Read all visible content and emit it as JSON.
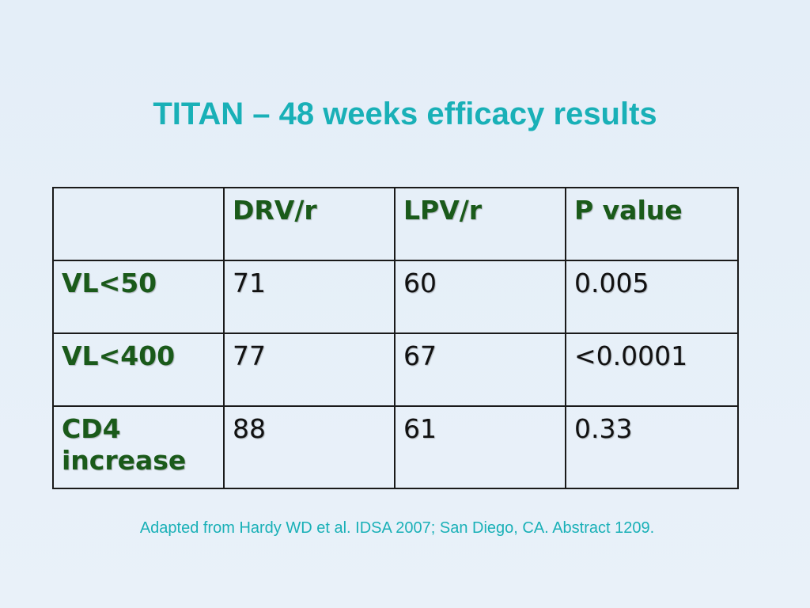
{
  "slide": {
    "title": "TITAN – 48 weeks efficacy results",
    "footnote": "Adapted from Hardy WD et al. IDSA 2007; San Diego, CA. Abstract 1209."
  },
  "table": {
    "columns": [
      "",
      "DRV/r",
      "LPV/r",
      "P value"
    ],
    "rows": [
      {
        "label": "VL<50",
        "drv": "71",
        "lpv": "60",
        "p": "0.005"
      },
      {
        "label": "VL<400",
        "drv": "77",
        "lpv": "67",
        "p": "<0.0001"
      },
      {
        "label": "CD4 increase",
        "drv": "88",
        "lpv": "61",
        "p": "0.33"
      }
    ]
  },
  "colors": {
    "title": "#19b0b7",
    "header_text": "#1a5a1a",
    "background": "#e6eff8"
  }
}
